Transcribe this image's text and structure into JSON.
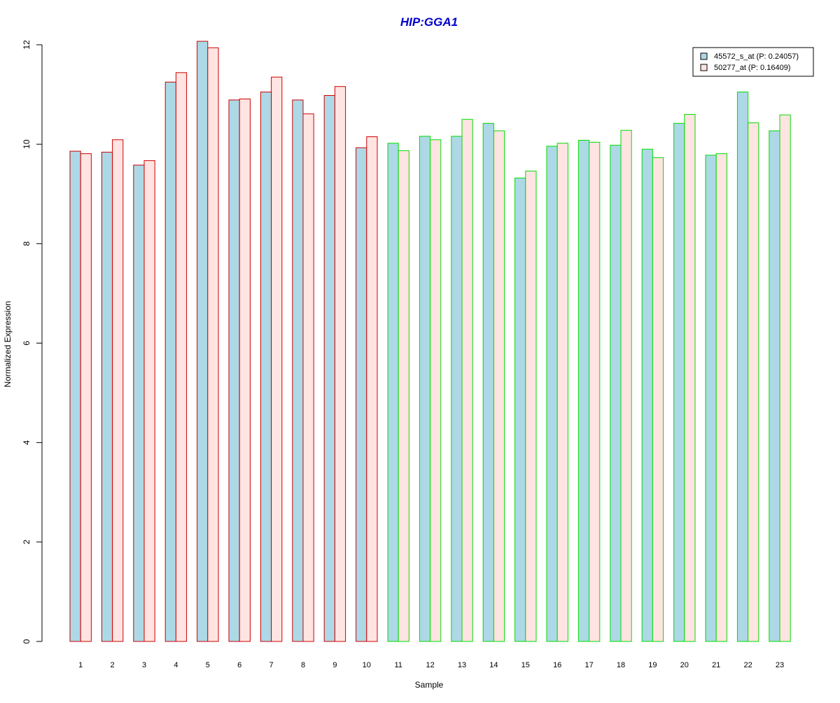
{
  "chart_data": {
    "type": "bar",
    "title": "HIP:GGA1",
    "xlabel": "Sample",
    "ylabel": "Normalized Expression",
    "ylim": [
      0,
      12
    ],
    "yticks": [
      "0",
      "2",
      "4",
      "6",
      "8",
      "10",
      "12"
    ],
    "categories": [
      "1",
      "2",
      "3",
      "4",
      "5",
      "6",
      "7",
      "8",
      "9",
      "10",
      "11",
      "12",
      "13",
      "14",
      "15",
      "16",
      "17",
      "18",
      "19",
      "20",
      "21",
      "22",
      "23"
    ],
    "series": [
      {
        "name": "45572_s_at (P: 0.24057)",
        "fill": "#add8e6",
        "values": [
          9.86,
          9.84,
          9.58,
          11.25,
          12.07,
          10.89,
          11.05,
          10.89,
          10.98,
          9.93,
          10.02,
          10.16,
          10.16,
          10.42,
          9.32,
          9.96,
          10.08,
          9.98,
          9.9,
          10.42,
          9.78,
          11.05,
          10.27
        ]
      },
      {
        "name": "50277_at (P: 0.16409)",
        "fill": "#ffe4e1",
        "values": [
          9.81,
          10.09,
          9.67,
          11.44,
          11.94,
          10.91,
          11.35,
          10.61,
          11.16,
          10.15,
          9.87,
          10.09,
          10.5,
          10.27,
          9.46,
          10.02,
          10.04,
          10.28,
          9.73,
          10.6,
          9.81,
          10.43,
          10.59
        ]
      }
    ],
    "group_colors": [
      "#cc0000",
      "#cc0000",
      "#cc0000",
      "#cc0000",
      "#cc0000",
      "#cc0000",
      "#cc0000",
      "#cc0000",
      "#cc0000",
      "#cc0000",
      "#00dd00",
      "#00dd00",
      "#00dd00",
      "#00dd00",
      "#00dd00",
      "#00dd00",
      "#00dd00",
      "#00dd00",
      "#00dd00",
      "#00dd00",
      "#00dd00",
      "#00dd00",
      "#00dd00"
    ],
    "title_color": "#0000cc",
    "grid": false,
    "legend_position": "top-right"
  }
}
